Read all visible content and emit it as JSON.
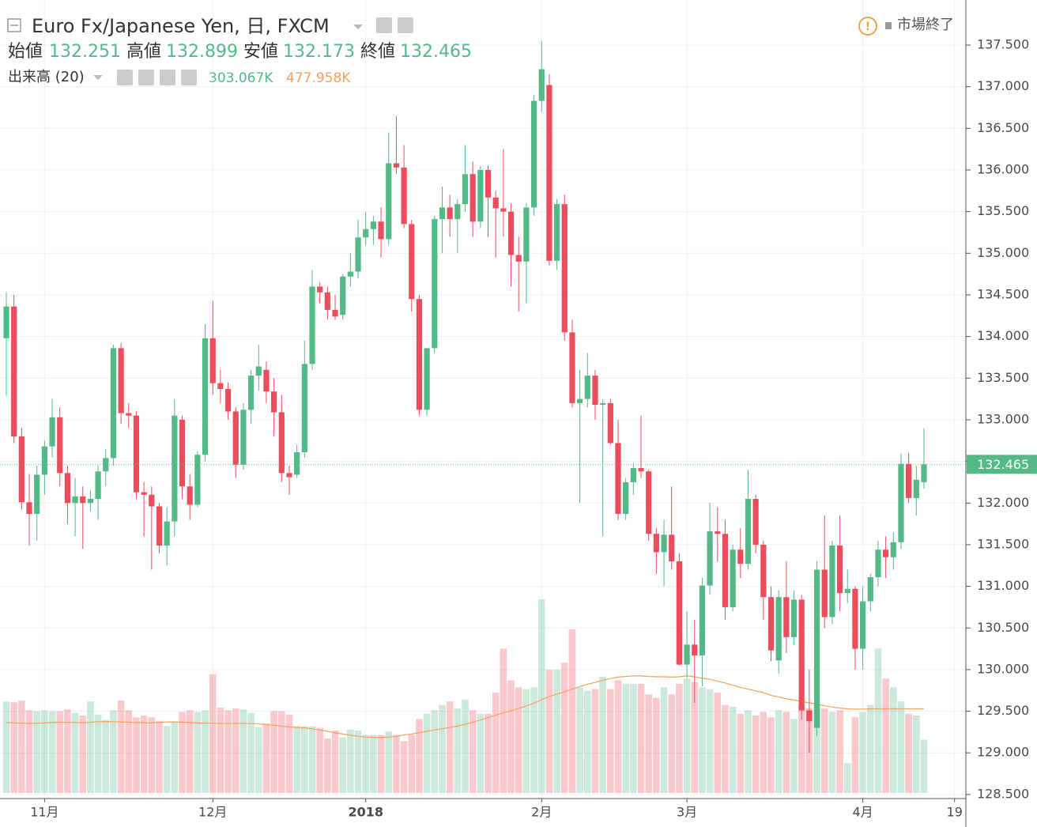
{
  "chart_data": {
    "type": "candlestick",
    "title": "Euro Fx/Japanese Yen, 日, FXCM",
    "status": "市場終了",
    "ohlc_labels": {
      "open": "始値",
      "high": "高値",
      "low": "安値",
      "close": "終値"
    },
    "up_color": "#53b987",
    "down_color": "#eb4d5c",
    "volume_ma_color": "#f5a15c",
    "open": [
      133.98,
      134.36,
      132.8,
      132.01,
      131.87,
      132.34,
      132.68,
      133.03,
      132.36,
      132.0,
      132.08,
      132.0,
      132.05,
      132.38,
      132.54,
      133.86,
      133.08,
      133.05,
      132.13,
      132.1,
      131.96,
      131.49,
      131.78,
      133.0,
      132.2,
      131.98,
      132.58,
      133.98,
      133.44,
      133.37,
      133.1,
      132.46,
      133.12,
      133.53,
      133.6,
      133.34,
      133.09,
      132.36,
      132.34,
      132.61,
      133.67,
      134.6,
      134.53,
      134.32,
      134.26,
      134.72,
      134.78,
      135.19,
      135.29,
      135.38,
      135.17,
      136.08,
      136.03,
      135.35,
      134.45,
      133.12,
      133.86,
      135.41,
      135.55,
      135.41,
      135.59,
      135.95,
      135.38,
      136.0,
      135.67,
      135.54,
      135.5,
      134.98,
      134.9,
      135.55,
      136.83,
      137.02,
      134.91,
      135.59,
      134.05,
      133.2,
      133.25,
      133.53,
      133.18,
      133.2,
      132.72,
      131.87,
      132.25,
      132.42,
      132.38,
      131.63,
      131.41,
      131.62,
      131.3,
      130.06,
      130.3,
      130.17,
      131.01,
      131.66,
      131.63,
      130.75,
      131.44,
      131.27,
      132.05,
      131.5,
      130.87,
      130.11,
      130.87,
      130.39,
      130.84,
      129.51,
      129.3,
      131.2,
      130.63,
      131.49,
      130.92,
      130.97,
      130.25,
      130.82,
      131.11,
      131.44,
      131.35,
      131.53,
      132.47,
      132.06,
      132.251
    ],
    "high": [
      134.53,
      134.5,
      132.9,
      132.35,
      132.45,
      132.75,
      133.25,
      133.15,
      132.45,
      132.3,
      132.2,
      132.15,
      132.45,
      132.65,
      133.9,
      133.92,
      133.2,
      133.1,
      132.25,
      132.2,
      132.0,
      131.95,
      133.25,
      133.05,
      132.35,
      132.62,
      134.15,
      134.43,
      133.6,
      133.45,
      133.15,
      133.2,
      133.6,
      133.9,
      133.7,
      133.5,
      133.3,
      132.45,
      132.7,
      133.95,
      134.8,
      134.65,
      134.6,
      134.5,
      134.75,
      135.0,
      135.4,
      135.5,
      135.45,
      135.55,
      136.45,
      136.65,
      136.3,
      135.4,
      134.5,
      133.85,
      135.45,
      135.8,
      135.7,
      135.65,
      136.3,
      136.1,
      136.05,
      136.05,
      135.75,
      136.25,
      135.6,
      135.2,
      135.6,
      136.9,
      137.55,
      137.15,
      135.65,
      135.7,
      134.2,
      133.6,
      133.8,
      133.6,
      133.25,
      133.25,
      133.0,
      132.3,
      132.48,
      133.05,
      132.4,
      131.7,
      131.8,
      132.2,
      131.4,
      130.7,
      130.6,
      131.1,
      132.0,
      131.95,
      131.8,
      131.5,
      131.7,
      132.4,
      132.1,
      131.55,
      131.0,
      130.95,
      131.3,
      130.95,
      130.9,
      130.0,
      131.3,
      131.85,
      131.55,
      131.85,
      131.2,
      131.0,
      131.0,
      131.15,
      131.55,
      131.6,
      131.65,
      132.6,
      132.6,
      132.45,
      132.899
    ],
    "low": [
      133.29,
      132.72,
      131.92,
      131.49,
      131.55,
      132.1,
      132.55,
      132.2,
      131.75,
      131.6,
      131.45,
      131.9,
      131.8,
      132.2,
      132.45,
      132.95,
      132.9,
      132.05,
      131.6,
      131.2,
      131.4,
      131.25,
      131.6,
      132.05,
      131.8,
      131.95,
      132.5,
      133.3,
      133.2,
      133.0,
      132.3,
      132.4,
      132.95,
      133.35,
      133.2,
      132.8,
      132.25,
      132.1,
      132.3,
      132.55,
      133.6,
      134.4,
      134.2,
      134.2,
      134.2,
      134.6,
      134.7,
      135.1,
      135.1,
      134.95,
      135.1,
      135.95,
      135.3,
      134.3,
      133.05,
      133.05,
      133.8,
      135.0,
      135.2,
      135.0,
      135.5,
      135.2,
      135.3,
      135.2,
      134.95,
      135.2,
      134.6,
      134.3,
      134.4,
      135.45,
      136.7,
      134.85,
      134.8,
      133.95,
      133.15,
      132.0,
      133.15,
      133.0,
      131.6,
      132.7,
      131.8,
      131.8,
      132.1,
      132.3,
      131.55,
      131.15,
      131.0,
      131.2,
      130.05,
      129.9,
      129.6,
      129.8,
      130.9,
      131.3,
      130.6,
      130.7,
      131.1,
      131.2,
      131.4,
      130.6,
      130.1,
      129.95,
      130.2,
      130.3,
      129.4,
      129.0,
      129.2,
      130.5,
      130.55,
      130.7,
      130.8,
      130.0,
      130.0,
      130.7,
      131.0,
      131.1,
      131.2,
      131.45,
      132.0,
      131.85,
      132.173
    ],
    "close": [
      134.36,
      132.8,
      132.01,
      131.87,
      132.34,
      132.68,
      133.03,
      132.36,
      132.0,
      132.08,
      132.0,
      132.05,
      132.38,
      132.54,
      133.86,
      133.08,
      133.05,
      132.13,
      132.1,
      131.96,
      131.49,
      131.78,
      133.05,
      132.2,
      131.98,
      132.58,
      133.98,
      133.44,
      133.37,
      133.1,
      132.46,
      133.12,
      133.53,
      133.64,
      133.34,
      133.09,
      132.36,
      132.31,
      132.61,
      133.67,
      134.6,
      134.53,
      134.32,
      134.24,
      134.72,
      134.78,
      135.19,
      135.29,
      135.38,
      135.17,
      136.08,
      136.03,
      135.35,
      134.45,
      133.12,
      133.86,
      135.41,
      135.55,
      135.41,
      135.59,
      135.95,
      135.38,
      136.0,
      135.67,
      135.54,
      135.5,
      134.98,
      134.9,
      135.55,
      136.83,
      137.21,
      134.91,
      135.59,
      134.05,
      133.2,
      133.25,
      133.53,
      133.18,
      133.2,
      132.72,
      131.87,
      132.25,
      132.42,
      132.38,
      131.63,
      131.41,
      131.62,
      131.3,
      130.06,
      130.3,
      130.17,
      131.01,
      131.66,
      131.63,
      130.75,
      131.44,
      131.27,
      132.05,
      131.5,
      130.87,
      130.23,
      130.87,
      130.39,
      130.84,
      129.51,
      129.38,
      131.2,
      130.63,
      131.49,
      130.92,
      130.97,
      130.25,
      130.82,
      131.11,
      131.44,
      131.35,
      131.53,
      132.47,
      132.06,
      132.28,
      132.465
    ],
    "volume": [
      520000,
      515000,
      525000,
      470000,
      465000,
      470000,
      465000,
      465000,
      475000,
      455000,
      440000,
      520000,
      445000,
      415000,
      470000,
      525000,
      470000,
      430000,
      440000,
      430000,
      410000,
      380000,
      400000,
      460000,
      470000,
      460000,
      470000,
      675000,
      485000,
      470000,
      480000,
      475000,
      455000,
      375000,
      395000,
      465000,
      465000,
      445000,
      380000,
      380000,
      380000,
      370000,
      310000,
      355000,
      315000,
      360000,
      355000,
      330000,
      330000,
      330000,
      350000,
      330000,
      295000,
      330000,
      420000,
      450000,
      470000,
      500000,
      520000,
      480000,
      530000,
      470000,
      450000,
      450000,
      570000,
      820000,
      640000,
      600000,
      590000,
      600000,
      1100000,
      700000,
      700000,
      740000,
      930000,
      600000,
      580000,
      590000,
      660000,
      590000,
      640000,
      620000,
      620000,
      620000,
      560000,
      540000,
      600000,
      560000,
      620000,
      650000,
      630000,
      600000,
      590000,
      570000,
      500000,
      490000,
      450000,
      470000,
      440000,
      460000,
      430000,
      470000,
      460000,
      420000,
      490000,
      480000,
      500000,
      480000,
      460000,
      470000,
      170000,
      430000,
      460000,
      500000,
      820000,
      650000,
      600000,
      520000,
      450000,
      440000,
      303067
    ],
    "volume_ma": [
      400000,
      398000,
      397000,
      395000,
      396000,
      398000,
      400000,
      402000,
      401000,
      400000,
      399000,
      402000,
      405000,
      406000,
      405000,
      404000,
      402000,
      400000,
      399000,
      398000,
      400000,
      403000,
      404000,
      402000,
      400000,
      398000,
      397000,
      396000,
      395000,
      394000,
      395000,
      396000,
      394000,
      392000,
      388000,
      385000,
      380000,
      375000,
      372000,
      370000,
      365000,
      358000,
      350000,
      342000,
      335000,
      328000,
      322000,
      318000,
      316000,
      315000,
      318000,
      322000,
      330000,
      335000,
      342000,
      350000,
      358000,
      365000,
      372000,
      380000,
      390000,
      402000,
      415000,
      428000,
      442000,
      455000,
      468000,
      480000,
      495000,
      510000,
      530000,
      548000,
      562000,
      575000,
      590000,
      605000,
      618000,
      628000,
      640000,
      650000,
      658000,
      662000,
      665000,
      665000,
      662000,
      660000,
      660000,
      658000,
      660000,
      665000,
      660000,
      652000,
      645000,
      635000,
      625000,
      612000,
      600000,
      590000,
      580000,
      570000,
      555000,
      545000,
      535000,
      528000,
      520000,
      512000,
      505000,
      495000,
      488000,
      482000,
      478000,
      476000,
      477000,
      478000,
      478000,
      478000,
      478000,
      478000,
      478000,
      478000,
      477958
    ],
    "volume_legend": {
      "name": "出来高 (20)",
      "label": "303.067K",
      "ma_label": "477.958K"
    },
    "last_price_label": "132.465",
    "ylim": [
      128.5,
      137.5
    ],
    "yticks": [
      {
        "value": 128.5,
        "label": "128.500"
      },
      {
        "value": 129,
        "label": "129.000"
      },
      {
        "value": 129.5,
        "label": "129.500"
      },
      {
        "value": 130,
        "label": "130.000"
      },
      {
        "value": 130.5,
        "label": "130.500"
      },
      {
        "value": 131,
        "label": "131.000"
      },
      {
        "value": 131.5,
        "label": "131.500"
      },
      {
        "value": 132,
        "label": "132.000"
      },
      {
        "value": 132.5,
        "label": "132.500"
      },
      {
        "value": 133,
        "label": "133.000"
      },
      {
        "value": 133.5,
        "label": "133.500"
      },
      {
        "value": 134,
        "label": "134.000"
      },
      {
        "value": 134.5,
        "label": "134.500"
      },
      {
        "value": 135,
        "label": "135.000"
      },
      {
        "value": 135.5,
        "label": "135.500"
      },
      {
        "value": 136,
        "label": "136.000"
      },
      {
        "value": 136.5,
        "label": "136.500"
      },
      {
        "value": 137,
        "label": "137.000"
      },
      {
        "value": 137.5,
        "label": "137.500"
      }
    ],
    "xticks": [
      {
        "value": 5,
        "label": "11月"
      },
      {
        "value": 27,
        "label": "12月"
      },
      {
        "value": 47,
        "label": "2018"
      },
      {
        "value": 70,
        "label": "2月"
      },
      {
        "value": 89,
        "label": "3月"
      },
      {
        "value": 112,
        "label": "4月"
      },
      {
        "value": 124,
        "label": "19"
      }
    ],
    "grid": true
  }
}
